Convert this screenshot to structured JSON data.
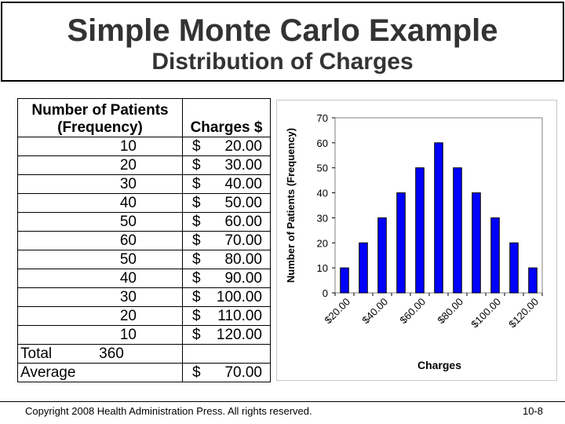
{
  "title": "Simple Monte Carlo Example",
  "subtitle": "Distribution of Charges",
  "table": {
    "header_patients_line1": "Number of Patients",
    "header_patients_line2": "(Frequency)",
    "header_charges": "Charges $",
    "currency": "$",
    "rows": [
      {
        "patients": "10",
        "charge": "20.00"
      },
      {
        "patients": "20",
        "charge": "30.00"
      },
      {
        "patients": "30",
        "charge": "40.00"
      },
      {
        "patients": "40",
        "charge": "50.00"
      },
      {
        "patients": "50",
        "charge": "60.00"
      },
      {
        "patients": "60",
        "charge": "70.00"
      },
      {
        "patients": "50",
        "charge": "80.00"
      },
      {
        "patients": "40",
        "charge": "90.00"
      },
      {
        "patients": "30",
        "charge": "100.00"
      },
      {
        "patients": "20",
        "charge": "110.00"
      },
      {
        "patients": "10",
        "charge": "120.00"
      }
    ],
    "total_label": "Total",
    "total_value": "360",
    "average_label": "Average",
    "average_value": "70.00"
  },
  "chart_data": {
    "type": "bar",
    "categories": [
      "$20.00",
      "$30.00",
      "$40.00",
      "$50.00",
      "$60.00",
      "$70.00",
      "$80.00",
      "$90.00",
      "$100.00",
      "$110.00",
      "$120.00"
    ],
    "category_labels_shown": [
      "$20.00",
      "$40.00",
      "$60.00",
      "$80.00",
      "$100.00",
      "$120.00"
    ],
    "values": [
      10,
      20,
      30,
      40,
      50,
      60,
      50,
      40,
      30,
      20,
      10
    ],
    "xlabel": "Charges",
    "ylabel": "Number of Patients (Frequency)",
    "ylim": [
      0,
      70
    ],
    "yticks": [
      0,
      10,
      20,
      30,
      40,
      50,
      60,
      70
    ],
    "bar_color": "#0000ff",
    "grid": false,
    "legend": "none"
  },
  "footer": {
    "copyright": "Copyright 2008 Health Administration Press. All rights reserved.",
    "page": "10-8"
  }
}
